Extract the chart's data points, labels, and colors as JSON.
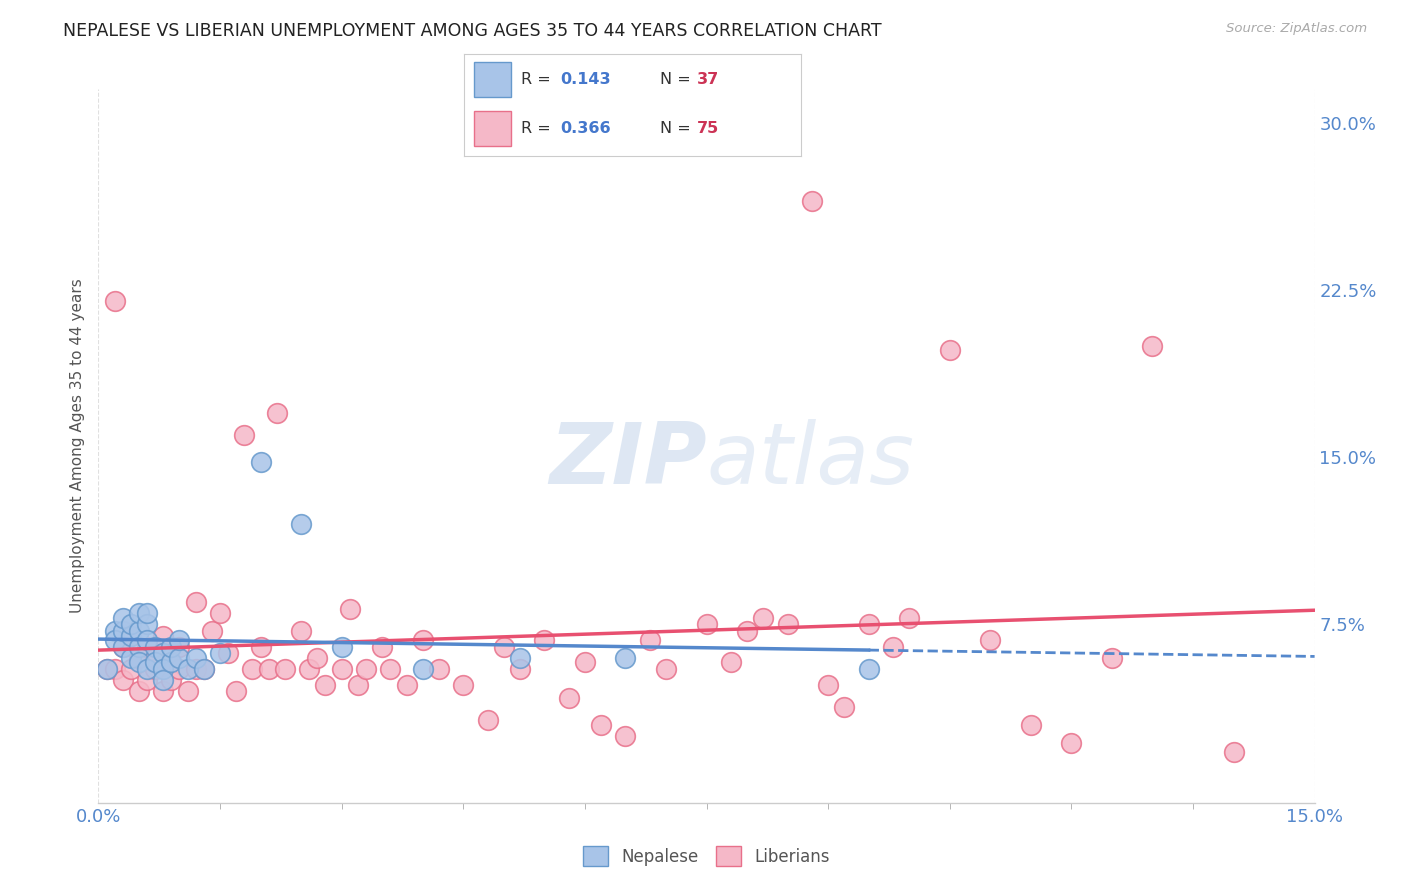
{
  "title": "NEPALESE VS LIBERIAN UNEMPLOYMENT AMONG AGES 35 TO 44 YEARS CORRELATION CHART",
  "source": "Source: ZipAtlas.com",
  "ylabel": "Unemployment Among Ages 35 to 44 years",
  "yticks": [
    "7.5%",
    "15.0%",
    "22.5%",
    "30.0%"
  ],
  "ytick_vals": [
    0.075,
    0.15,
    0.225,
    0.3
  ],
  "xrange": [
    0.0,
    0.15
  ],
  "yrange": [
    -0.005,
    0.315
  ],
  "nepalese_color": "#a8c4e8",
  "liberian_color": "#f5b8c8",
  "nepalese_edge_color": "#6699cc",
  "liberian_edge_color": "#e8708a",
  "trendline_nepalese_color": "#5588cc",
  "trendline_liberian_color": "#e85070",
  "nepalese_x": [
    0.001,
    0.002,
    0.002,
    0.003,
    0.003,
    0.003,
    0.004,
    0.004,
    0.004,
    0.005,
    0.005,
    0.005,
    0.005,
    0.006,
    0.006,
    0.006,
    0.006,
    0.007,
    0.007,
    0.008,
    0.008,
    0.008,
    0.009,
    0.009,
    0.01,
    0.01,
    0.011,
    0.012,
    0.013,
    0.015,
    0.02,
    0.025,
    0.03,
    0.04,
    0.052,
    0.065,
    0.095
  ],
  "nepalese_y": [
    0.055,
    0.072,
    0.068,
    0.065,
    0.072,
    0.078,
    0.06,
    0.07,
    0.075,
    0.072,
    0.08,
    0.065,
    0.058,
    0.075,
    0.08,
    0.068,
    0.055,
    0.065,
    0.058,
    0.062,
    0.055,
    0.05,
    0.058,
    0.065,
    0.06,
    0.068,
    0.055,
    0.06,
    0.055,
    0.062,
    0.148,
    0.12,
    0.065,
    0.055,
    0.06,
    0.06,
    0.055
  ],
  "liberian_x": [
    0.001,
    0.002,
    0.002,
    0.003,
    0.003,
    0.004,
    0.004,
    0.005,
    0.005,
    0.006,
    0.006,
    0.007,
    0.007,
    0.008,
    0.008,
    0.009,
    0.009,
    0.01,
    0.01,
    0.011,
    0.012,
    0.012,
    0.013,
    0.014,
    0.015,
    0.016,
    0.017,
    0.018,
    0.019,
    0.02,
    0.021,
    0.022,
    0.023,
    0.025,
    0.026,
    0.027,
    0.028,
    0.03,
    0.031,
    0.032,
    0.033,
    0.035,
    0.036,
    0.038,
    0.04,
    0.042,
    0.045,
    0.048,
    0.05,
    0.052,
    0.055,
    0.058,
    0.06,
    0.062,
    0.065,
    0.068,
    0.07,
    0.075,
    0.078,
    0.08,
    0.082,
    0.085,
    0.088,
    0.09,
    0.092,
    0.095,
    0.098,
    0.1,
    0.105,
    0.11,
    0.115,
    0.12,
    0.125,
    0.13,
    0.14
  ],
  "liberian_y": [
    0.055,
    0.22,
    0.055,
    0.065,
    0.05,
    0.055,
    0.07,
    0.045,
    0.06,
    0.05,
    0.065,
    0.055,
    0.06,
    0.045,
    0.07,
    0.058,
    0.05,
    0.065,
    0.055,
    0.045,
    0.085,
    0.055,
    0.055,
    0.072,
    0.08,
    0.062,
    0.045,
    0.16,
    0.055,
    0.065,
    0.055,
    0.17,
    0.055,
    0.072,
    0.055,
    0.06,
    0.048,
    0.055,
    0.082,
    0.048,
    0.055,
    0.065,
    0.055,
    0.048,
    0.068,
    0.055,
    0.048,
    0.032,
    0.065,
    0.055,
    0.068,
    0.042,
    0.058,
    0.03,
    0.025,
    0.068,
    0.055,
    0.075,
    0.058,
    0.072,
    0.078,
    0.075,
    0.265,
    0.048,
    0.038,
    0.075,
    0.065,
    0.078,
    0.198,
    0.068,
    0.03,
    0.022,
    0.06,
    0.2,
    0.018
  ],
  "watermark_zip": "ZIP",
  "watermark_atlas": "atlas",
  "background_color": "#ffffff",
  "plot_bg_color": "#ffffff",
  "grid_color": "#e0e0e0",
  "legend_R_nepalese": "0.143",
  "legend_N_nepalese": "37",
  "legend_R_liberian": "0.366",
  "legend_N_liberian": "75",
  "legend_text_color": "#333333",
  "legend_value_color": "#4477cc",
  "legend_N_color": "#cc3355"
}
